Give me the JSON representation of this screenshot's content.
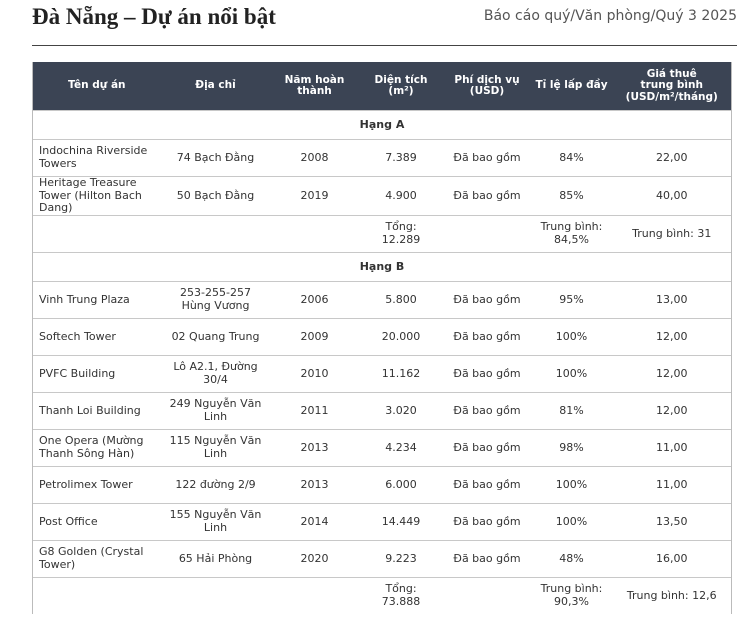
{
  "header": {
    "title": "Đà Nẵng – Dự án nổi bật",
    "subtitle": "Báo cáo quý/Văn phòng/Quý 3 2025"
  },
  "table": {
    "columns": [
      "Tên dự án",
      "Địa chỉ",
      "Năm hoàn\nthành",
      "Diện tích\n(m²)",
      "Phí dịch vụ\n(USD)",
      "Tỉ lệ lấp đầy",
      "Giá thuê\ntrung bình\n(USD/m²/tháng)"
    ],
    "sections": [
      {
        "label": "Hạng A",
        "rows": [
          [
            "Indochina Riverside Towers",
            "74 Bạch Đằng",
            "2008",
            "7.389",
            "Đã bao gồm",
            "84%",
            "22,00"
          ],
          [
            "Heritage Treasure Tower (Hilton Bach Dang)",
            "50 Bạch Đằng",
            "2019",
            "4.900",
            "Đã bao gồm",
            "85%",
            "40,00"
          ]
        ],
        "total": {
          "area": "Tổng: 12.289",
          "occupancy": "Trung bình: 84,5%",
          "rent": "Trung bình: 31"
        }
      },
      {
        "label": "Hạng B",
        "rows": [
          [
            "Vinh Trung Plaza",
            "253-255-257 Hùng Vương",
            "2006",
            "5.800",
            "Đã bao gồm",
            "95%",
            "13,00"
          ],
          [
            "Softech Tower",
            "02 Quang Trung",
            "2009",
            "20.000",
            "Đã bao gồm",
            "100%",
            "12,00"
          ],
          [
            "PVFC Building",
            "Lô A2.1, Đường 30/4",
            "2010",
            "11.162",
            "Đã bao gồm",
            "100%",
            "12,00"
          ],
          [
            "Thanh Loi Building",
            "249 Nguyễn Văn Linh",
            "2011",
            "3.020",
            "Đã bao gồm",
            "81%",
            "12,00"
          ],
          [
            "One Opera (Mường Thanh Sông Hàn)",
            "115 Nguyễn Văn Linh",
            "2013",
            "4.234",
            "Đã bao gồm",
            "98%",
            "11,00"
          ],
          [
            "Petrolimex Tower",
            "122 đường 2/9",
            "2013",
            "6.000",
            "Đã bao gồm",
            "100%",
            "11,00"
          ],
          [
            "Post Office",
            "155 Nguyễn Văn Linh",
            "2014",
            "14.449",
            "Đã bao gồm",
            "100%",
            "13,50"
          ],
          [
            "G8 Golden (Crystal Tower)",
            "65 Hải Phòng",
            "2020",
            "9.223",
            "Đã bao gồm",
            "48%",
            "16,00"
          ]
        ],
        "total": {
          "area": "Tổng: 73.888",
          "occupancy": "Trung bình: 90,3%",
          "rent": "Trung bình: 12,6"
        }
      }
    ]
  }
}
